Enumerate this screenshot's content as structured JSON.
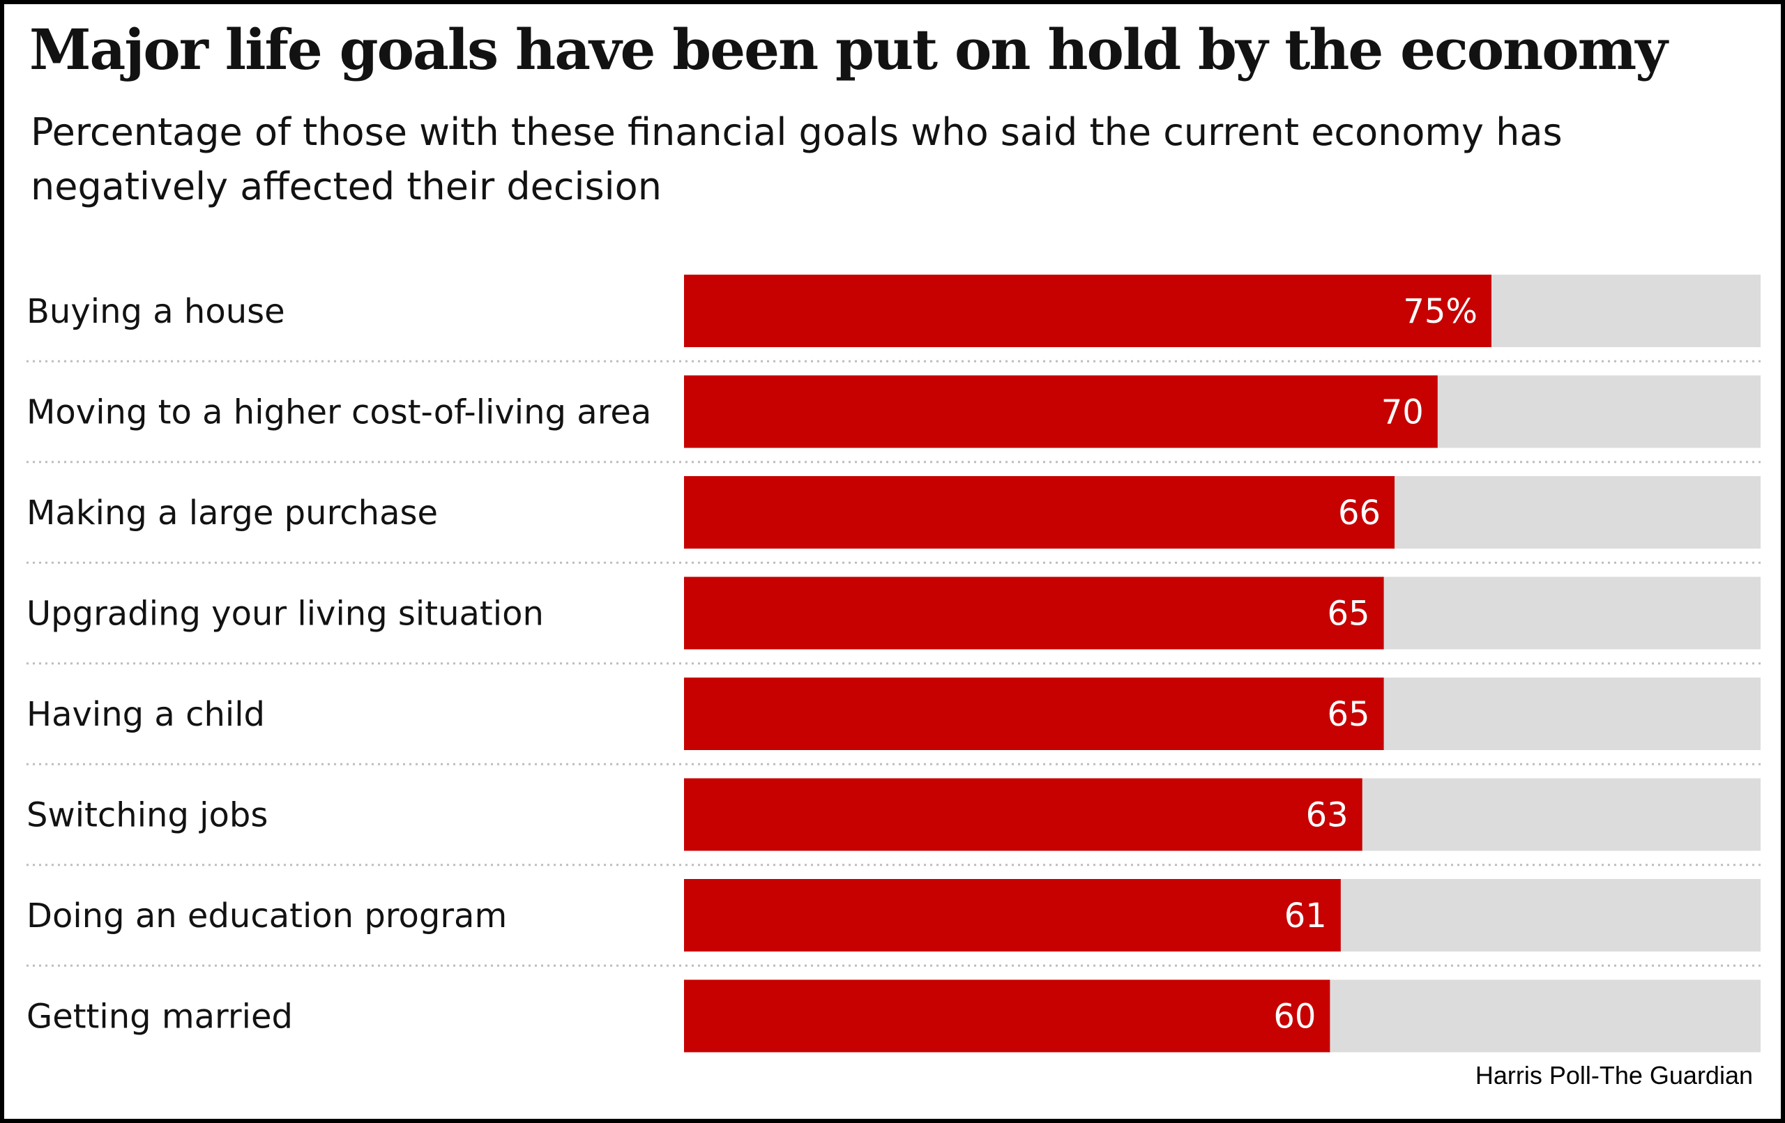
{
  "chart_data": {
    "type": "bar",
    "orientation": "horizontal",
    "title": "Major life goals have been put on hold by the economy",
    "subtitle": "Percentage of those with these financial goals who said the current economy has negatively affected their decision",
    "categories": [
      "Buying a house",
      "Moving to a higher cost-of-living area",
      "Making a large purchase",
      "Upgrading your living situation",
      "Having a child",
      "Switching jobs",
      "Doing an education program",
      "Getting married"
    ],
    "values": [
      75,
      70,
      66,
      65,
      65,
      63,
      61,
      60
    ],
    "value_labels": [
      "75%",
      "70",
      "66",
      "65",
      "65",
      "63",
      "61",
      "60"
    ],
    "xlim": [
      0,
      100
    ],
    "unit": "%",
    "source": "Harris Poll-The Guardian",
    "colors": {
      "bar": "#c70000",
      "track": "#dcdcdc",
      "divider": "#bdbdbd",
      "text": "#121212"
    }
  }
}
